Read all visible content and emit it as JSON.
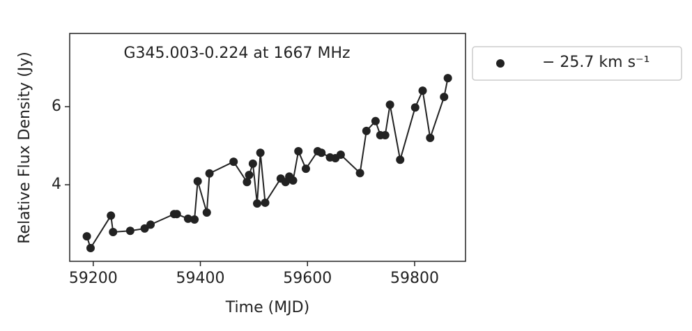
{
  "chart_data": {
    "type": "line",
    "annotation": "G345.003-0.224 at 1667 MHz",
    "x_label": "Time (MJD)",
    "y_label": "Relative Flux Density (Jy)",
    "x": [
      59188,
      59195,
      59233,
      59237,
      59269,
      59296,
      59307,
      59351,
      59356,
      59377,
      59389,
      59395,
      59412,
      59417,
      59462,
      59487,
      59491,
      59498,
      59506,
      59512,
      59521,
      59550,
      59559,
      59566,
      59573,
      59583,
      59597,
      59619,
      59626,
      59642,
      59652,
      59662,
      59698,
      59710,
      59727,
      59736,
      59745,
      59754,
      59773,
      59801,
      59815,
      59829,
      59855,
      59862
    ],
    "series": [
      {
        "name": "− 25.7 km s⁻¹",
        "color": "#222222",
        "values": [
          2.68,
          2.38,
          3.21,
          2.79,
          2.82,
          2.88,
          2.98,
          3.25,
          3.25,
          3.13,
          3.11,
          4.09,
          3.29,
          4.29,
          4.59,
          4.07,
          4.25,
          4.54,
          3.52,
          4.82,
          3.54,
          4.16,
          4.07,
          4.21,
          4.11,
          4.86,
          4.41,
          4.86,
          4.82,
          4.7,
          4.68,
          4.77,
          4.3,
          5.38,
          5.63,
          5.27,
          5.27,
          6.05,
          4.64,
          5.98,
          6.41,
          5.2,
          6.25,
          6.73
        ]
      }
    ],
    "xlim": [
      59156,
      59895
    ],
    "xticks": [
      59200,
      59400,
      59600,
      59800
    ],
    "ylim": [
      2.04,
      7.875
    ],
    "yticks": [
      4,
      6
    ],
    "legend": "outside-right"
  }
}
